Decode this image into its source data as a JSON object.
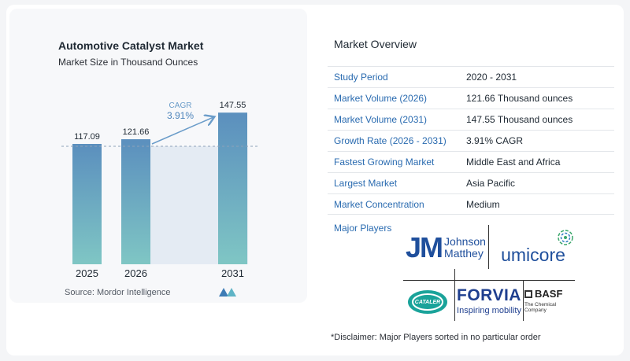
{
  "chart": {
    "title": "Automotive Catalyst Market",
    "subtitle": "Market Size in Thousand Ounces",
    "source": "Source:  Mordor Intelligence",
    "cagr_label": "CAGR",
    "cagr_value": "3.91%"
  },
  "chart_data": {
    "type": "bar",
    "categories": [
      "2025",
      "2026",
      "2031"
    ],
    "values": [
      117.09,
      121.66,
      147.55
    ],
    "value_labels": [
      "117.09",
      "121.66",
      "147.55"
    ],
    "title": "Automotive Catalyst Market",
    "subtitle": "Market Size in Thousand Ounces",
    "xlabel": "",
    "ylabel": "",
    "ylim": [
      0,
      150
    ],
    "grid": false,
    "colors": {
      "bar_top": "#5b8fbe",
      "bar_bottom": "#7fc6c4",
      "shade": "#e4ebf3",
      "arrow": "#6a9cc9"
    }
  },
  "overview": {
    "title": "Market Overview",
    "rows": [
      {
        "label": "Study Period",
        "value": "2020 - 2031"
      },
      {
        "label": "Market Volume (2026)",
        "value": "121.66 Thousand ounces"
      },
      {
        "label": "Market Volume (2031)",
        "value": "147.55 Thousand ounces"
      },
      {
        "label": "Growth Rate (2026 - 2031)",
        "value": "3.91% CAGR"
      },
      {
        "label": "Fastest Growing Market",
        "value": "Middle East and Africa"
      },
      {
        "label": "Largest Market",
        "value": "Asia Pacific"
      },
      {
        "label": "Market Concentration",
        "value": "Medium"
      }
    ],
    "players_label": "Major Players",
    "players": {
      "jm_mark": "JM",
      "jm_line1": "Johnson",
      "jm_line2": "Matthey",
      "umicore": "umicore",
      "cataler": "CATALER",
      "forvia": "FORVIA",
      "forvia_tagline": "Inspiring mobility",
      "basf": "BASF",
      "basf_tagline": "The Chemical Company"
    },
    "disclaimer": "*Disclaimer: Major Players sorted in no particular order"
  }
}
